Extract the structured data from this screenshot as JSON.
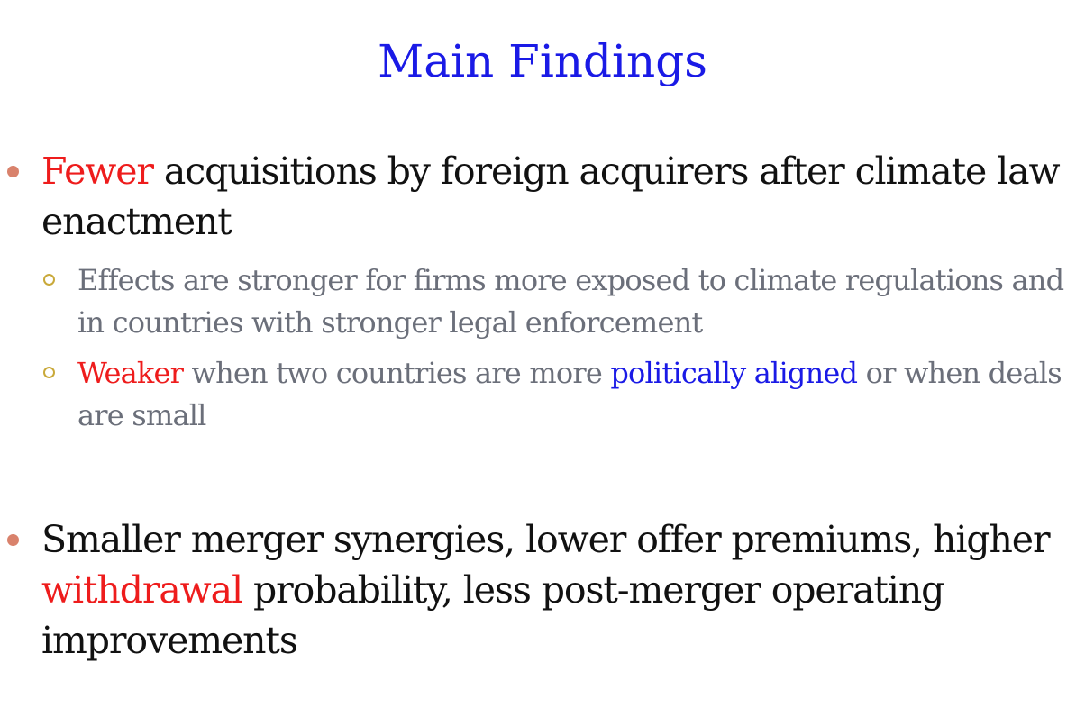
{
  "slide": {
    "title": "Main Findings",
    "point1": {
      "highlight": "Fewer",
      "text": " acquisitions by foreign acquirers after climate law enactment",
      "sub1": {
        "text": "Effects are stronger for firms more exposed to climate regulations and in countries with stronger legal enforcement"
      },
      "sub2": {
        "highlight_red": "Weaker",
        "text_a": " when two countries are more ",
        "highlight_blue": "politically aligned",
        "text_b": " or when deals are small"
      }
    },
    "point2": {
      "text_a": "Smaller merger synergies, lower offer premiums, higher ",
      "highlight": "withdrawal",
      "text_b": " probability, less post-merger operating improvements"
    }
  },
  "colors": {
    "title": "#1a1ae6",
    "highlight_red": "#ee1c1c",
    "highlight_blue": "#1a1ae6",
    "body_text": "#111111",
    "sub_text": "#6b6f7a",
    "bullet_l1": "#d9826c",
    "bullet_l2": "#c9a93a"
  }
}
